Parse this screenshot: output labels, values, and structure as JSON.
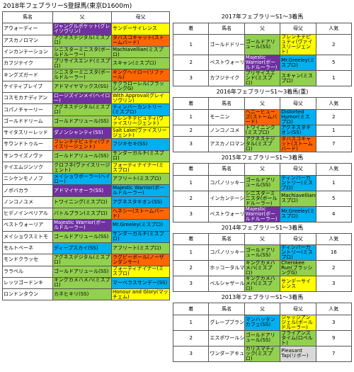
{
  "title": "2018年フェブラリーS登録馬(東京D1600m)",
  "left": {
    "headers": [
      "馬名",
      "父",
      "母父"
    ],
    "rows": [
      {
        "name": "アウォーディー",
        "sire": "ジャングルポケット(グレイソヴリン)",
        "sire_c": "p",
        "dam": "サンデーサイレンス",
        "dam_c": "y"
      },
      {
        "name": "アスカノロマン",
        "sire": "アグネスデジタル(ミスプロ)",
        "sire_c": "g",
        "dam": "タバスコキャット(ストームバード)",
        "dam_c": "o"
      },
      {
        "name": "インカンテーション",
        "sire": "シニスターミニスタ(ボールドルーラー)",
        "sire_c": "g",
        "dam": "Machiavellian(ミスプロ)",
        "dam_c": "g"
      },
      {
        "name": "カフジテイク",
        "sire": "プリサイスエンド(ミスプロ)",
        "sire_c": "g",
        "dam": "スキャン(ミスプロ)",
        "dam_c": "g"
      },
      {
        "name": "キングズガード",
        "sire": "シニスターミニスタ(ボールドルーラー)",
        "sire_c": "g",
        "dam": "キングヘイロー(リファール)",
        "dam_c": "o"
      },
      {
        "name": "ケイティブレイブ",
        "sire": "アドマイヤマックス(SS)",
        "sire_c": "g",
        "dam": "サクラローレル(ブラッシングG)",
        "dam_c": "g"
      },
      {
        "name": "コスモカナディアン",
        "sire": "ロージズインメイ(ヘイロー)",
        "sire_c": "p",
        "dam": "With Approval(グレイソヴリン)",
        "dam_c": "y"
      },
      {
        "name": "コパノチャーリー",
        "sire": "アグネスデジタル(ミスプロ)",
        "sire_c": "g",
        "dam": "ティンバーカントリー(ミスプロ)",
        "dam_c": "b"
      },
      {
        "name": "ゴールドドリーム",
        "sire": "ゴールドアリュール(SS)",
        "sire_c": "g",
        "dam": "フレンチデピュティ(ヴァイスリージェント)",
        "dam_c": "y"
      },
      {
        "name": "サイタスリーレッド",
        "sire": "ダノンシャンティ(SS)",
        "sire_c": "p",
        "dam": "Salt Lake(ヴァイスリージェント)",
        "dam_c": "y"
      },
      {
        "name": "サウンドトゥルー",
        "sire": "フレンチデピュティ(ヴァイスリージェント)",
        "sire_c": "o",
        "dam": "フジキセキ(SS)",
        "dam_c": "b"
      },
      {
        "name": "サンライズノヴァ",
        "sire": "ゴールドアリュール(SS)",
        "sire_c": "g",
        "dam": "サンダーガルチ(ミスプロ)",
        "dam_c": "g"
      },
      {
        "name": "テイエムジンソク",
        "sire": "クロフネ(ヴァイスリージェント)",
        "sire_c": "g",
        "dam": "フォーティナイナー(ミスプロ)",
        "dam_c": "y"
      },
      {
        "name": "ニシケンモノノフ",
        "sire": "メイショウボーラー(ヘイロー)",
        "sire_c": "b",
        "dam": "アフリート(ミスプロ)",
        "dam_c": "g"
      },
      {
        "name": "ノボバカラ",
        "sire": "アドマイヤオーラ(SS)",
        "sire_c": "p",
        "dam": "Majestic Warrior(ボールドルーラー)",
        "dam_c": "b"
      },
      {
        "name": "ノンコノユメ",
        "sire": "トワイニング(ミスプロ)",
        "sire_c": "g",
        "dam": "アグネスタキオン(SS)",
        "dam_c": "b"
      },
      {
        "name": "ヒデノインペリアル",
        "sire": "バトルプラン(ミスプロ)",
        "sire_c": "g",
        "dam": "ヘネシー(ストームバード)",
        "dam_c": "o"
      },
      {
        "name": "ベストウォーリア",
        "sire": "Majestic Warrior(ボールドルーラー)",
        "sire_c": "p",
        "dam": "Mr.Greeley(ミスプロ)",
        "dam_c": "b"
      },
      {
        "name": "メイショウスミトモ",
        "sire": "ゴールドアリュール(SS)",
        "sire_c": "g",
        "dam": "サンダーガルチ(ミスプロ)",
        "dam_c": "b"
      },
      {
        "name": "モルトベーネ",
        "sire": "ディープスカイ(SS)",
        "sire_c": "b",
        "dam": "アフリート(ミスプロ)",
        "dam_c": "g"
      },
      {
        "name": "モンドクラッセ",
        "sire": "アグネスデジタル(ミスプロ)",
        "sire_c": "g",
        "dam": "ラグビーボール(ノーザンダンサー)",
        "dam_c": "o"
      },
      {
        "name": "ララベル",
        "sire": "ゴールドアリュール(SS)",
        "sire_c": "g",
        "dam": "フォーティナイナー(ミスプロ)",
        "dam_c": "y"
      },
      {
        "name": "レッツゴードンキ",
        "sire": "キングカメハメハ(ミスプロ)",
        "sire_c": "g",
        "dam": "マーベラスサンデー(SS)",
        "dam_c": "b"
      },
      {
        "name": "ロンドンタウン",
        "sire": "カネヒキリ(SS)",
        "sire_c": "g",
        "dam": "Honour and Glory(マッチェム)",
        "dam_c": "y"
      }
    ]
  },
  "right": {
    "headers": [
      "着",
      "馬名",
      "父",
      "母父",
      "人気"
    ],
    "sections": [
      {
        "title": "2017年フェブラリーS1～3着馬",
        "rows": [
          {
            "pos": "1",
            "name": "ゴールドドリーム",
            "sire": "ゴールドアリュール(SS)",
            "sire_c": "g",
            "dam": "フレンチデピュティ(ヴァイスリージェント)",
            "dam_c": "y",
            "pop": "2"
          },
          {
            "pos": "2",
            "name": "ベストウォーリア",
            "sire": "Majestic Warrior(ボールドルーラー)",
            "sire_c": "p",
            "dam": "Mr.Greeley(ミスプロ)",
            "dam_c": "b",
            "pop": "5"
          },
          {
            "pos": "3",
            "name": "カフジテイク",
            "sire": "プリサイスエンド(ミスプロ)",
            "sire_c": "g",
            "dam": "スキャン(ミスプロ)",
            "dam_c": "g",
            "pop": "1"
          }
        ]
      },
      {
        "title": "2016年フェブラリーS1～3着馬(重)",
        "rows": [
          {
            "pos": "1",
            "name": "モーニン",
            "sire": "ヘニーヒューズ(ストームバード)",
            "sire_c": "o",
            "dam": "Distorted Humor(ミスプロ)",
            "dam_c": "b",
            "pop": "2"
          },
          {
            "pos": "2",
            "name": "ノンコノユメ",
            "sire": "トワイニング(ミスプロ)",
            "sire_c": "g",
            "dam": "アグネスタキオン(SS)",
            "dam_c": "b",
            "pop": "1"
          },
          {
            "pos": "3",
            "name": "アスカノロマン",
            "sire": "アグネスデジタル(ミスプロ)",
            "sire_c": "g",
            "dam": "タバスコキャット(ストームバード)",
            "dam_c": "o",
            "pop": "7"
          }
        ]
      },
      {
        "title": "2015年フェブラリーS1～3着馬",
        "rows": [
          {
            "pos": "1",
            "name": "コパノリッキー",
            "sire": "ゴールドアリュール(SS)",
            "sire_c": "g",
            "dam": "ティンバーカントリー(ミスプロ)",
            "dam_c": "b",
            "pop": "1"
          },
          {
            "pos": "2",
            "name": "インカンテーション",
            "sire": "シニスターミニスタ(ボールドルーラー)",
            "sire_c": "g",
            "dam": "Machiavellian(ミスプロ)",
            "dam_c": "g",
            "pop": "5"
          },
          {
            "pos": "3",
            "name": "ベストウォーリア",
            "sire": "Majestic Warrior(ボールドルーラー)",
            "sire_c": "p",
            "dam": "Mr.Greeley(ミスプロ)",
            "dam_c": "b",
            "pop": "4"
          }
        ]
      },
      {
        "title": "2014年フェブラリーS1～3着馬",
        "rows": [
          {
            "pos": "1",
            "name": "コパノリッキー",
            "sire": "ゴールドアリュール(SS)",
            "sire_c": "g",
            "dam": "ティンバーカントリー(ミスプロ)",
            "dam_c": "b",
            "pop": "16"
          },
          {
            "pos": "2",
            "name": "ホッコータルマエ",
            "sire": "キングカメハメハ(ミスプロ)",
            "sire_c": "g",
            "dam": "Cherokee Run(ブラッシングG)",
            "dam_c": "g",
            "pop": "2"
          },
          {
            "pos": "3",
            "name": "ベルシャザール",
            "sire": "キングカメハメハ(ミスプロ)",
            "sire_c": "g",
            "dam": "サンデーサイレンス",
            "dam_c": "y",
            "pop": "3"
          }
        ]
      },
      {
        "title": "2013年フェブラリーS1～3着馬",
        "rows": [
          {
            "pos": "1",
            "name": "グレープブランデー",
            "sire": "マンハッタンカフェ(SS)",
            "sire_c": "b",
            "dam": "ジャッジアンジェル(ボールドルーラー)",
            "dam_c": "y",
            "pop": "3"
          },
          {
            "pos": "2",
            "name": "エスポワールシチー",
            "sire": "ゴールドアリュール(SS)",
            "sire_c": "g",
            "dam": "ブライアンズタイム(ロベルト)",
            "dam_c": "g",
            "pop": "9"
          },
          {
            "pos": "3",
            "name": "ワンダーアキュート",
            "sire": "カリズマティック(ミスプロ)",
            "sire_c": "g",
            "dam": "Pleasant Tap(リボー)",
            "dam_c": "gr",
            "pop": "7"
          }
        ]
      }
    ]
  }
}
